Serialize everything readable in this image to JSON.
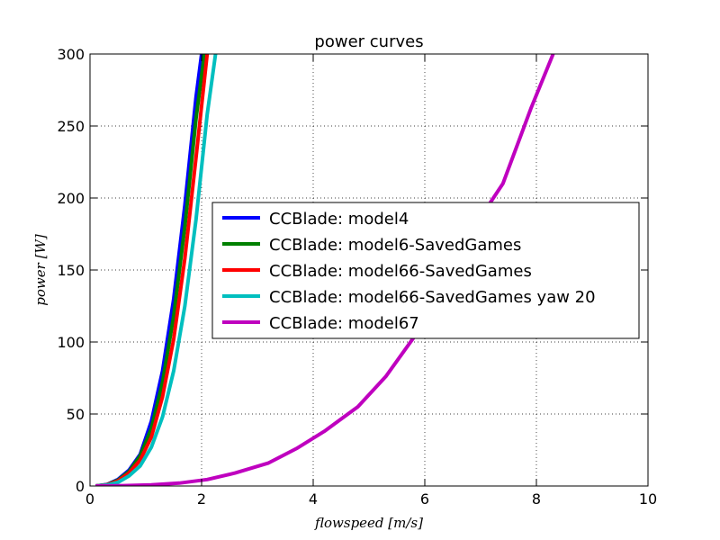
{
  "chart_data": {
    "type": "line",
    "title": "power curves",
    "xlabel": "$flowspeed [m/s]$",
    "ylabel": "$power [W]$",
    "xlim": [
      0,
      10
    ],
    "ylim": [
      0,
      300
    ],
    "xticks": [
      0,
      2,
      4,
      6,
      8,
      10
    ],
    "yticks": [
      0,
      50,
      100,
      150,
      200,
      250,
      300
    ],
    "grid": true,
    "legend_position": "center",
    "series": [
      {
        "name": "CCBlade: model4",
        "color": "#0000ff",
        "x": [
          0.1,
          0.3,
          0.5,
          0.7,
          0.9,
          1.1,
          1.3,
          1.5,
          1.7,
          1.9,
          2.0
        ],
        "y": [
          0,
          1,
          4.5,
          11,
          22,
          45,
          80,
          130,
          195,
          270,
          300
        ]
      },
      {
        "name": "CCBlade: model6-SavedGames",
        "color": "#008000",
        "x": [
          0.1,
          0.3,
          0.5,
          0.7,
          0.9,
          1.1,
          1.3,
          1.5,
          1.7,
          1.9,
          2.05
        ],
        "y": [
          0,
          0.9,
          4,
          10,
          21,
          40,
          72,
          118,
          180,
          255,
          300
        ]
      },
      {
        "name": "CCBlade: model66-SavedGames",
        "color": "#ff0000",
        "x": [
          0.1,
          0.3,
          0.5,
          0.7,
          0.9,
          1.1,
          1.3,
          1.5,
          1.7,
          1.9,
          2.1
        ],
        "y": [
          0,
          0.8,
          3.5,
          9,
          18,
          34,
          62,
          102,
          158,
          228,
          300
        ]
      },
      {
        "name": "CCBlade: model66-SavedGames yaw 20",
        "color": "#00bfbf",
        "x": [
          0.1,
          0.3,
          0.5,
          0.7,
          0.9,
          1.1,
          1.3,
          1.5,
          1.7,
          1.9,
          2.1,
          2.25
        ],
        "y": [
          0,
          0.6,
          2.5,
          7,
          14,
          27,
          48,
          80,
          125,
          185,
          258,
          300
        ]
      },
      {
        "name": "CCBlade: model67",
        "color": "#bf00bf",
        "x": [
          0.1,
          0.6,
          1.1,
          1.6,
          2.1,
          2.6,
          3.2,
          3.7,
          4.2,
          4.8,
          5.3,
          5.8,
          6.3,
          6.8,
          7.4,
          7.9,
          8.3
        ],
        "y": [
          0,
          0.2,
          0.8,
          2,
          4.5,
          9,
          16,
          26,
          38,
          55,
          76,
          103,
          136,
          175,
          210,
          262,
          300
        ]
      }
    ]
  }
}
